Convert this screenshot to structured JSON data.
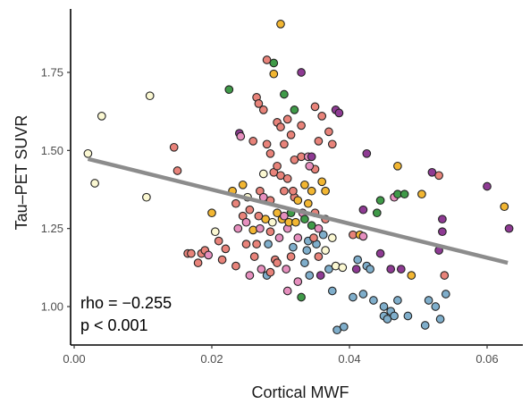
{
  "chart_data": {
    "type": "scatter",
    "xlabel": "Cortical MWF",
    "ylabel": "Tau–PET SUVR",
    "xlim": [
      0.0,
      0.064
    ],
    "ylim": [
      0.905,
      1.91
    ],
    "xticks": [
      0.0,
      0.02,
      0.04,
      0.06
    ],
    "xtick_labels": [
      "0.00",
      "0.02",
      "0.04",
      "0.06"
    ],
    "yticks": [
      1.0,
      1.25,
      1.5,
      1.75
    ],
    "ytick_labels": [
      "1.00",
      "1.25",
      "1.50",
      "1.75"
    ],
    "grid": false,
    "legend": false,
    "annotations": [
      "rho = −0.255",
      "p < 0.001"
    ],
    "trend_line": {
      "x": [
        0.002,
        0.063
      ],
      "y": [
        1.473,
        1.14
      ]
    },
    "colors": {
      "salmon": "#E8837A",
      "pink": "#E68FBE",
      "orange": "#F2B632",
      "green": "#3F9A48",
      "purple": "#8E3A93",
      "blue": "#7FAECB",
      "cream": "#FBF8D2",
      "trend": "#8C8C8C",
      "marker_edge": "#222222"
    },
    "points": [
      {
        "x": 0.002,
        "y": 1.49,
        "c": "cream"
      },
      {
        "x": 0.003,
        "y": 1.395,
        "c": "cream"
      },
      {
        "x": 0.004,
        "y": 1.61,
        "c": "cream"
      },
      {
        "x": 0.0105,
        "y": 1.35,
        "c": "cream"
      },
      {
        "x": 0.011,
        "y": 1.675,
        "c": "cream"
      },
      {
        "x": 0.0145,
        "y": 1.51,
        "c": "salmon"
      },
      {
        "x": 0.015,
        "y": 1.435,
        "c": "salmon"
      },
      {
        "x": 0.0165,
        "y": 1.17,
        "c": "salmon"
      },
      {
        "x": 0.017,
        "y": 1.17,
        "c": "salmon"
      },
      {
        "x": 0.018,
        "y": 1.14,
        "c": "salmon"
      },
      {
        "x": 0.0185,
        "y": 1.17,
        "c": "salmon"
      },
      {
        "x": 0.019,
        "y": 1.18,
        "c": "salmon"
      },
      {
        "x": 0.0195,
        "y": 1.165,
        "c": "pink"
      },
      {
        "x": 0.02,
        "y": 1.3,
        "c": "orange"
      },
      {
        "x": 0.0205,
        "y": 1.24,
        "c": "cream"
      },
      {
        "x": 0.021,
        "y": 1.21,
        "c": "salmon"
      },
      {
        "x": 0.0215,
        "y": 1.15,
        "c": "salmon"
      },
      {
        "x": 0.022,
        "y": 1.185,
        "c": "salmon"
      },
      {
        "x": 0.0225,
        "y": 1.695,
        "c": "green"
      },
      {
        "x": 0.023,
        "y": 1.37,
        "c": "orange"
      },
      {
        "x": 0.0235,
        "y": 1.33,
        "c": "salmon"
      },
      {
        "x": 0.024,
        "y": 1.555,
        "c": "purple"
      },
      {
        "x": 0.0242,
        "y": 1.545,
        "c": "pink"
      },
      {
        "x": 0.0245,
        "y": 1.29,
        "c": "salmon"
      },
      {
        "x": 0.025,
        "y": 1.27,
        "c": "pink"
      },
      {
        "x": 0.025,
        "y": 1.2,
        "c": "salmon"
      },
      {
        "x": 0.0252,
        "y": 1.35,
        "c": "cream"
      },
      {
        "x": 0.0255,
        "y": 1.31,
        "c": "salmon"
      },
      {
        "x": 0.026,
        "y": 1.53,
        "c": "salmon"
      },
      {
        "x": 0.026,
        "y": 1.245,
        "c": "orange"
      },
      {
        "x": 0.0262,
        "y": 1.16,
        "c": "salmon"
      },
      {
        "x": 0.0265,
        "y": 1.67,
        "c": "salmon"
      },
      {
        "x": 0.0268,
        "y": 1.65,
        "c": "salmon"
      },
      {
        "x": 0.027,
        "y": 1.37,
        "c": "salmon"
      },
      {
        "x": 0.027,
        "y": 1.25,
        "c": "pink"
      },
      {
        "x": 0.0272,
        "y": 1.12,
        "c": "pink"
      },
      {
        "x": 0.0275,
        "y": 1.63,
        "c": "salmon"
      },
      {
        "x": 0.0275,
        "y": 1.425,
        "c": "cream"
      },
      {
        "x": 0.0278,
        "y": 1.28,
        "c": "orange"
      },
      {
        "x": 0.028,
        "y": 1.79,
        "c": "salmon"
      },
      {
        "x": 0.028,
        "y": 1.52,
        "c": "salmon"
      },
      {
        "x": 0.028,
        "y": 1.1,
        "c": "blue"
      },
      {
        "x": 0.0282,
        "y": 1.2,
        "c": "blue"
      },
      {
        "x": 0.0285,
        "y": 1.49,
        "c": "salmon"
      },
      {
        "x": 0.0285,
        "y": 1.34,
        "c": "salmon"
      },
      {
        "x": 0.0288,
        "y": 1.27,
        "c": "cream"
      },
      {
        "x": 0.029,
        "y": 1.745,
        "c": "orange"
      },
      {
        "x": 0.029,
        "y": 1.78,
        "c": "green"
      },
      {
        "x": 0.029,
        "y": 1.43,
        "c": "salmon"
      },
      {
        "x": 0.0292,
        "y": 1.15,
        "c": "salmon"
      },
      {
        "x": 0.0295,
        "y": 1.59,
        "c": "salmon"
      },
      {
        "x": 0.0295,
        "y": 1.3,
        "c": "orange"
      },
      {
        "x": 0.0298,
        "y": 1.22,
        "c": "pink"
      },
      {
        "x": 0.03,
        "y": 1.905,
        "c": "orange"
      },
      {
        "x": 0.03,
        "y": 1.575,
        "c": "salmon"
      },
      {
        "x": 0.03,
        "y": 1.42,
        "c": "salmon"
      },
      {
        "x": 0.0302,
        "y": 1.28,
        "c": "orange"
      },
      {
        "x": 0.0305,
        "y": 1.68,
        "c": "green"
      },
      {
        "x": 0.0305,
        "y": 1.52,
        "c": "salmon"
      },
      {
        "x": 0.0305,
        "y": 1.37,
        "c": "salmon"
      },
      {
        "x": 0.0308,
        "y": 1.12,
        "c": "pink"
      },
      {
        "x": 0.031,
        "y": 1.6,
        "c": "salmon"
      },
      {
        "x": 0.031,
        "y": 1.41,
        "c": "salmon"
      },
      {
        "x": 0.031,
        "y": 1.25,
        "c": "pink"
      },
      {
        "x": 0.0312,
        "y": 1.27,
        "c": "orange"
      },
      {
        "x": 0.0315,
        "y": 1.55,
        "c": "salmon"
      },
      {
        "x": 0.0315,
        "y": 1.3,
        "c": "green"
      },
      {
        "x": 0.0318,
        "y": 1.19,
        "c": "blue"
      },
      {
        "x": 0.032,
        "y": 1.63,
        "c": "green"
      },
      {
        "x": 0.032,
        "y": 1.47,
        "c": "salmon"
      },
      {
        "x": 0.032,
        "y": 1.35,
        "c": "salmon"
      },
      {
        "x": 0.0322,
        "y": 1.27,
        "c": "orange"
      },
      {
        "x": 0.0325,
        "y": 1.22,
        "c": "pink"
      },
      {
        "x": 0.0325,
        "y": 1.08,
        "c": "pink"
      },
      {
        "x": 0.033,
        "y": 1.75,
        "c": "purple"
      },
      {
        "x": 0.033,
        "y": 1.58,
        "c": "salmon"
      },
      {
        "x": 0.033,
        "y": 1.48,
        "c": "salmon"
      },
      {
        "x": 0.0332,
        "y": 1.3,
        "c": "pink"
      },
      {
        "x": 0.0335,
        "y": 1.39,
        "c": "orange"
      },
      {
        "x": 0.0335,
        "y": 1.28,
        "c": "green"
      },
      {
        "x": 0.0338,
        "y": 1.18,
        "c": "blue"
      },
      {
        "x": 0.034,
        "y": 1.48,
        "c": "pink"
      },
      {
        "x": 0.034,
        "y": 1.33,
        "c": "orange"
      },
      {
        "x": 0.034,
        "y": 1.21,
        "c": "blue"
      },
      {
        "x": 0.0342,
        "y": 1.1,
        "c": "blue"
      },
      {
        "x": 0.0345,
        "y": 1.48,
        "c": "purple"
      },
      {
        "x": 0.0345,
        "y": 1.26,
        "c": "green"
      },
      {
        "x": 0.035,
        "y": 1.64,
        "c": "salmon"
      },
      {
        "x": 0.035,
        "y": 1.44,
        "c": "salmon"
      },
      {
        "x": 0.035,
        "y": 1.3,
        "c": "salmon"
      },
      {
        "x": 0.0352,
        "y": 1.2,
        "c": "blue"
      },
      {
        "x": 0.0355,
        "y": 1.53,
        "c": "salmon"
      },
      {
        "x": 0.0355,
        "y": 1.25,
        "c": "pink"
      },
      {
        "x": 0.0358,
        "y": 1.1,
        "c": "purple"
      },
      {
        "x": 0.036,
        "y": 1.61,
        "c": "salmon"
      },
      {
        "x": 0.036,
        "y": 1.4,
        "c": "orange"
      },
      {
        "x": 0.0362,
        "y": 1.23,
        "c": "blue"
      },
      {
        "x": 0.0365,
        "y": 1.37,
        "c": "orange"
      },
      {
        "x": 0.0365,
        "y": 1.18,
        "c": "cream"
      },
      {
        "x": 0.037,
        "y": 1.56,
        "c": "salmon"
      },
      {
        "x": 0.037,
        "y": 1.12,
        "c": "blue"
      },
      {
        "x": 0.0375,
        "y": 1.52,
        "c": "salmon"
      },
      {
        "x": 0.0375,
        "y": 1.05,
        "c": "blue"
      },
      {
        "x": 0.038,
        "y": 1.63,
        "c": "purple"
      },
      {
        "x": 0.038,
        "y": 1.13,
        "c": "cream"
      },
      {
        "x": 0.0382,
        "y": 0.925,
        "c": "blue"
      },
      {
        "x": 0.0385,
        "y": 1.62,
        "c": "purple"
      },
      {
        "x": 0.039,
        "y": 1.125,
        "c": "cream"
      },
      {
        "x": 0.0392,
        "y": 0.935,
        "c": "blue"
      },
      {
        "x": 0.0405,
        "y": 1.23,
        "c": "salmon"
      },
      {
        "x": 0.0405,
        "y": 1.03,
        "c": "blue"
      },
      {
        "x": 0.041,
        "y": 1.12,
        "c": "purple"
      },
      {
        "x": 0.0412,
        "y": 1.15,
        "c": "blue"
      },
      {
        "x": 0.0415,
        "y": 1.23,
        "c": "orange"
      },
      {
        "x": 0.042,
        "y": 1.31,
        "c": "purple"
      },
      {
        "x": 0.042,
        "y": 1.225,
        "c": "pink"
      },
      {
        "x": 0.042,
        "y": 1.04,
        "c": "blue"
      },
      {
        "x": 0.0425,
        "y": 1.49,
        "c": "purple"
      },
      {
        "x": 0.0425,
        "y": 1.13,
        "c": "blue"
      },
      {
        "x": 0.043,
        "y": 1.12,
        "c": "blue"
      },
      {
        "x": 0.0435,
        "y": 1.02,
        "c": "blue"
      },
      {
        "x": 0.044,
        "y": 1.3,
        "c": "green"
      },
      {
        "x": 0.0445,
        "y": 1.34,
        "c": "green"
      },
      {
        "x": 0.0445,
        "y": 1.17,
        "c": "purple"
      },
      {
        "x": 0.045,
        "y": 1.0,
        "c": "blue"
      },
      {
        "x": 0.045,
        "y": 0.97,
        "c": "blue"
      },
      {
        "x": 0.0455,
        "y": 0.96,
        "c": "blue"
      },
      {
        "x": 0.046,
        "y": 1.12,
        "c": "purple"
      },
      {
        "x": 0.046,
        "y": 0.985,
        "c": "blue"
      },
      {
        "x": 0.0465,
        "y": 1.35,
        "c": "pink"
      },
      {
        "x": 0.0465,
        "y": 0.97,
        "c": "blue"
      },
      {
        "x": 0.047,
        "y": 1.36,
        "c": "green"
      },
      {
        "x": 0.047,
        "y": 1.45,
        "c": "orange"
      },
      {
        "x": 0.047,
        "y": 1.02,
        "c": "blue"
      },
      {
        "x": 0.0475,
        "y": 1.12,
        "c": "purple"
      },
      {
        "x": 0.048,
        "y": 1.36,
        "c": "green"
      },
      {
        "x": 0.0485,
        "y": 0.97,
        "c": "blue"
      },
      {
        "x": 0.049,
        "y": 1.1,
        "c": "orange"
      },
      {
        "x": 0.0505,
        "y": 1.36,
        "c": "orange"
      },
      {
        "x": 0.051,
        "y": 0.94,
        "c": "blue"
      },
      {
        "x": 0.0515,
        "y": 1.02,
        "c": "blue"
      },
      {
        "x": 0.052,
        "y": 1.43,
        "c": "purple"
      },
      {
        "x": 0.0525,
        "y": 1.0,
        "c": "blue"
      },
      {
        "x": 0.053,
        "y": 1.42,
        "c": "salmon"
      },
      {
        "x": 0.053,
        "y": 1.18,
        "c": "purple"
      },
      {
        "x": 0.0532,
        "y": 0.96,
        "c": "blue"
      },
      {
        "x": 0.0535,
        "y": 1.28,
        "c": "purple"
      },
      {
        "x": 0.0535,
        "y": 1.24,
        "c": "purple"
      },
      {
        "x": 0.0538,
        "y": 1.1,
        "c": "salmon"
      },
      {
        "x": 0.054,
        "y": 1.04,
        "c": "blue"
      },
      {
        "x": 0.06,
        "y": 1.385,
        "c": "purple"
      },
      {
        "x": 0.0625,
        "y": 1.32,
        "c": "orange"
      },
      {
        "x": 0.0632,
        "y": 1.25,
        "c": "purple"
      },
      {
        "x": 0.0245,
        "y": 1.39,
        "c": "orange"
      },
      {
        "x": 0.0265,
        "y": 1.2,
        "c": "salmon"
      },
      {
        "x": 0.0275,
        "y": 1.35,
        "c": "pink"
      },
      {
        "x": 0.0285,
        "y": 1.24,
        "c": "salmon"
      },
      {
        "x": 0.0295,
        "y": 1.14,
        "c": "salmon"
      },
      {
        "x": 0.0305,
        "y": 1.29,
        "c": "pink"
      },
      {
        "x": 0.0315,
        "y": 1.16,
        "c": "salmon"
      },
      {
        "x": 0.0325,
        "y": 1.34,
        "c": "orange"
      },
      {
        "x": 0.0335,
        "y": 1.14,
        "c": "blue"
      },
      {
        "x": 0.0345,
        "y": 1.37,
        "c": "orange"
      },
      {
        "x": 0.0355,
        "y": 1.16,
        "c": "salmon"
      },
      {
        "x": 0.0365,
        "y": 1.28,
        "c": "salmon"
      },
      {
        "x": 0.0375,
        "y": 1.22,
        "c": "cream"
      },
      {
        "x": 0.0235,
        "y": 1.13,
        "c": "salmon"
      },
      {
        "x": 0.0255,
        "y": 1.1,
        "c": "pink"
      },
      {
        "x": 0.0285,
        "y": 1.11,
        "c": "salmon"
      },
      {
        "x": 0.031,
        "y": 1.05,
        "c": "pink"
      },
      {
        "x": 0.033,
        "y": 1.03,
        "c": "green"
      },
      {
        "x": 0.0295,
        "y": 1.45,
        "c": "salmon"
      },
      {
        "x": 0.0318,
        "y": 1.37,
        "c": "salmon"
      },
      {
        "x": 0.0342,
        "y": 1.45,
        "c": "pink"
      },
      {
        "x": 0.0238,
        "y": 1.25,
        "c": "pink"
      },
      {
        "x": 0.0268,
        "y": 1.29,
        "c": "salmon"
      },
      {
        "x": 0.0348,
        "y": 1.22,
        "c": "salmon"
      }
    ]
  }
}
